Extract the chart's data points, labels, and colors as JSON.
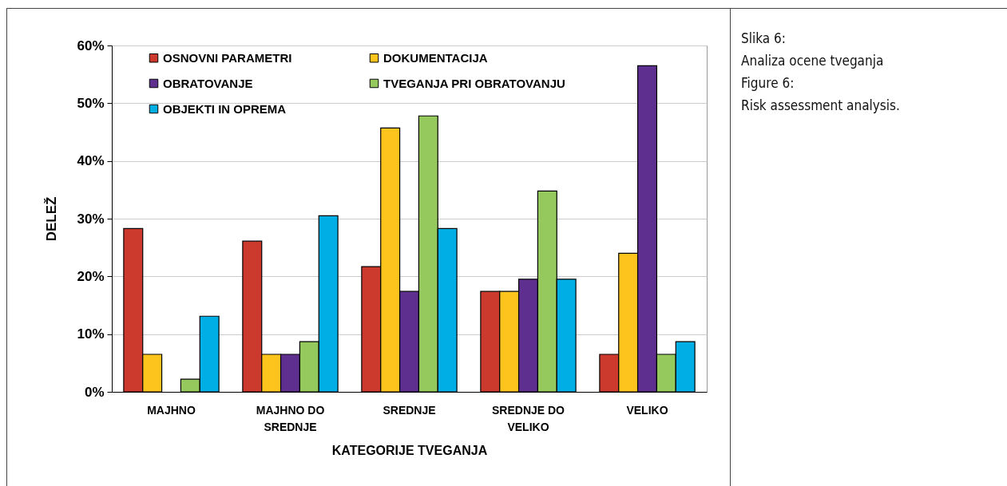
{
  "chart_data": {
    "type": "bar",
    "xlabel": "KATEGORIJE TVEGANJA",
    "ylabel": "DELEŽ",
    "categories": [
      "MAJHNO",
      "MAJHNO DO SREDNJE",
      "SREDNJE",
      "SREDNJE DO VELIKO",
      "VELIKO"
    ],
    "series": [
      {
        "name": "OSNOVNI PARAMETRI",
        "color": "#cc3a2e",
        "values": [
          28.3,
          26.1,
          21.7,
          17.4,
          6.5
        ]
      },
      {
        "name": "DOKUMENTACIJA",
        "color": "#fdc41e",
        "values": [
          6.5,
          6.5,
          45.7,
          17.4,
          24.0
        ]
      },
      {
        "name": "OBRATOVANJE",
        "color": "#5f2f8f",
        "values": [
          null,
          6.5,
          17.4,
          19.5,
          56.5
        ]
      },
      {
        "name": "TVEGANJA PRI OBRATOVANJU",
        "color": "#95c95e",
        "values": [
          2.2,
          8.7,
          47.8,
          34.8,
          6.5
        ]
      },
      {
        "name": "OBJEKTI IN OPREMA",
        "color": "#00aee6",
        "values": [
          13.1,
          30.5,
          28.3,
          19.5,
          8.7
        ]
      }
    ],
    "ylim": [
      0,
      60
    ],
    "yticks": [
      {
        "value": 0,
        "label": "0%"
      },
      {
        "value": 10,
        "label": "10%"
      },
      {
        "value": 20,
        "label": "20%"
      },
      {
        "value": 30,
        "label": "30%"
      },
      {
        "value": 40,
        "label": "40%"
      },
      {
        "value": 50,
        "label": "50%"
      },
      {
        "value": 60,
        "label": "60%"
      }
    ],
    "grid": "y",
    "legend": "top",
    "annotations": [
      "Slika 6:",
      "Analiza ocene tveganja",
      "Figure 6:",
      "Risk assessment analysis."
    ]
  }
}
